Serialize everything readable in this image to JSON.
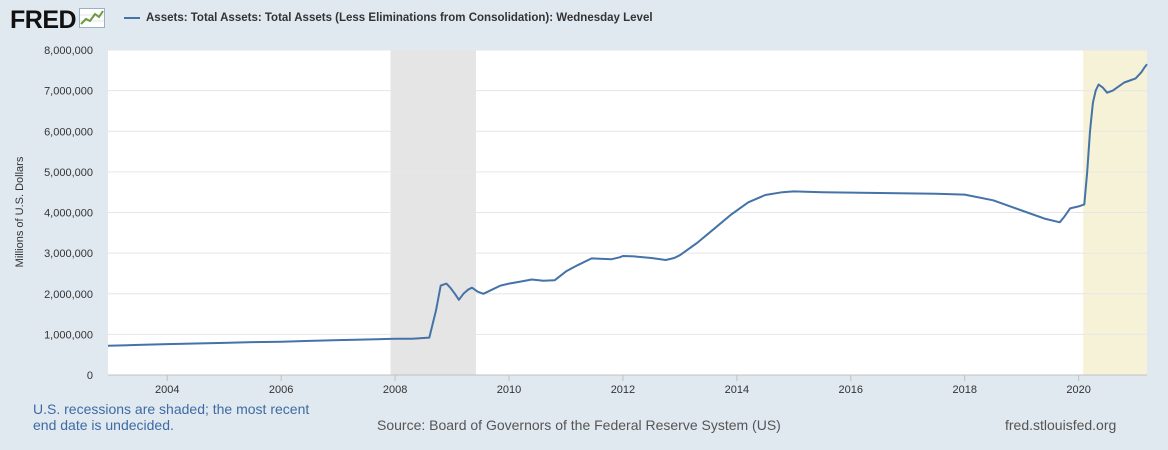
{
  "header": {
    "logo_text": "FRED",
    "logo_icon": "line-graph-icon"
  },
  "chart_data": {
    "type": "line",
    "title": "Assets: Total Assets: Total Assets (Less Eliminations from Consolidation): Wednesday Level",
    "xlabel": "",
    "ylabel": "Millions of U.S. Dollars",
    "xlim": [
      2002.96,
      2021.2
    ],
    "ylim": [
      0,
      8000000
    ],
    "x_ticks": [
      2004,
      2006,
      2008,
      2010,
      2012,
      2014,
      2016,
      2018,
      2020
    ],
    "x_tick_labels": [
      "2004",
      "2006",
      "2008",
      "2010",
      "2012",
      "2014",
      "2016",
      "2018",
      "2020"
    ],
    "y_ticks": [
      0,
      1000000,
      2000000,
      3000000,
      4000000,
      5000000,
      6000000,
      7000000,
      8000000
    ],
    "y_tick_labels": [
      "0",
      "1,000,000",
      "2,000,000",
      "3,000,000",
      "4,000,000",
      "5,000,000",
      "6,000,000",
      "7,000,000",
      "8,000,000"
    ],
    "grid": true,
    "legend_position": "top-left",
    "recessions": [
      {
        "start": 2007.92,
        "end": 2009.42,
        "color": "#e5e5e5"
      },
      {
        "start": 2020.08,
        "end": 2021.2,
        "color": "#f5f2d8"
      }
    ],
    "series": [
      {
        "name": "Assets: Total Assets: Total Assets (Less Eliminations from Consolidation): Wednesday Level",
        "color": "#4572a7",
        "x": [
          2002.96,
          2003.5,
          2004.0,
          2004.5,
          2005.0,
          2005.5,
          2006.0,
          2006.5,
          2007.0,
          2007.5,
          2008.0,
          2008.3,
          2008.6,
          2008.72,
          2008.8,
          2008.9,
          2008.97,
          2009.05,
          2009.12,
          2009.2,
          2009.28,
          2009.35,
          2009.45,
          2009.55,
          2009.7,
          2009.85,
          2010.0,
          2010.2,
          2010.4,
          2010.6,
          2010.8,
          2011.0,
          2011.2,
          2011.45,
          2011.6,
          2011.8,
          2011.95,
          2012.0,
          2012.2,
          2012.5,
          2012.75,
          2012.9,
          2013.0,
          2013.3,
          2013.6,
          2013.9,
          2014.2,
          2014.5,
          2014.8,
          2015.0,
          2015.5,
          2016.0,
          2016.5,
          2017.0,
          2017.5,
          2018.0,
          2018.5,
          2019.0,
          2019.4,
          2019.67,
          2019.75,
          2019.85,
          2020.0,
          2020.1,
          2020.15,
          2020.2,
          2020.25,
          2020.3,
          2020.35,
          2020.42,
          2020.5,
          2020.6,
          2020.7,
          2020.8,
          2020.9,
          2021.0,
          2021.1,
          2021.15,
          2021.2
        ],
        "values": [
          720000,
          740000,
          760000,
          775000,
          790000,
          810000,
          820000,
          840000,
          860000,
          875000,
          890000,
          890000,
          920000,
          1600000,
          2200000,
          2250000,
          2150000,
          2000000,
          1850000,
          2000000,
          2100000,
          2150000,
          2050000,
          2000000,
          2100000,
          2200000,
          2250000,
          2300000,
          2350000,
          2320000,
          2330000,
          2550000,
          2700000,
          2870000,
          2860000,
          2850000,
          2900000,
          2930000,
          2920000,
          2880000,
          2830000,
          2880000,
          2950000,
          3250000,
          3600000,
          3950000,
          4250000,
          4430000,
          4500000,
          4520000,
          4500000,
          4490000,
          4480000,
          4470000,
          4460000,
          4440000,
          4300000,
          4050000,
          3850000,
          3760000,
          3900000,
          4100000,
          4150000,
          4200000,
          5000000,
          6000000,
          6700000,
          7000000,
          7150000,
          7080000,
          6950000,
          7000000,
          7100000,
          7200000,
          7250000,
          7300000,
          7450000,
          7560000,
          7650000
        ]
      }
    ]
  },
  "footer": {
    "recession_note": "U.S. recessions are shaded; the most recent end date is undecided.",
    "source": "Source: Board of Governors of the Federal Reserve System (US)",
    "url": "fred.stlouisfed.org"
  }
}
